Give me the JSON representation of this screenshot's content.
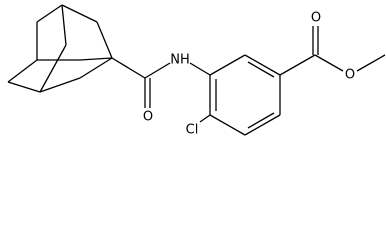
{
  "atoms": {
    "amide_oxygen": "O",
    "amine": "NH",
    "carbonyl_oxygen": "O",
    "ester_oxygen": "O",
    "chlorine": "Cl"
  }
}
